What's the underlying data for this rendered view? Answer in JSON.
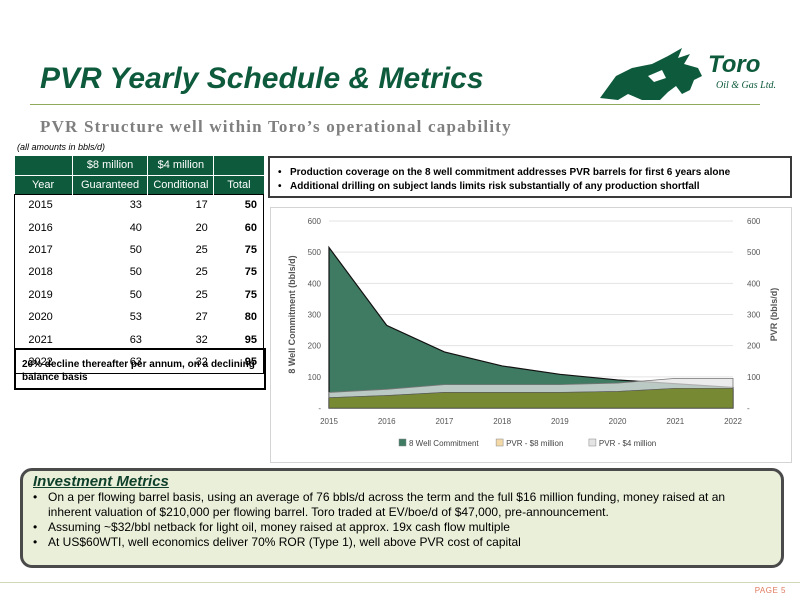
{
  "title": "PVR Yearly Schedule & Metrics",
  "subtitle": "PVR Structure well within Toro’s operational capability",
  "logo": {
    "text": "Toro",
    "subtext": "Oil & Gas Ltd.",
    "icon": "bull-icon",
    "color": "#0d5a3c"
  },
  "units_note": "(all amounts in bbls/d)",
  "table": {
    "header_top": [
      "",
      "$8 million",
      "$4 million",
      ""
    ],
    "header_bottom": [
      "Year",
      "Guaranteed",
      "Conditional",
      "Total"
    ],
    "rows": [
      [
        "2015",
        "33",
        "17",
        "50"
      ],
      [
        "2016",
        "40",
        "20",
        "60"
      ],
      [
        "2017",
        "50",
        "25",
        "75"
      ],
      [
        "2018",
        "50",
        "25",
        "75"
      ],
      [
        "2019",
        "50",
        "25",
        "75"
      ],
      [
        "2020",
        "53",
        "27",
        "80"
      ],
      [
        "2021",
        "63",
        "32",
        "95"
      ],
      [
        "2022",
        "63",
        "32",
        "95"
      ]
    ]
  },
  "decline_note": "20% decline thereafter per annum, on a declining balance basis",
  "coverage_bullets": [
    "Production coverage on the 8 well commitment addresses PVR barrels for first 6 years alone",
    "Additional drilling on subject lands limits risk substantially of any production shortfall"
  ],
  "chart_data": {
    "type": "area",
    "categories": [
      "2015",
      "2016",
      "2017",
      "2018",
      "2019",
      "2020",
      "2021",
      "2022"
    ],
    "ylabel": "8 Well Commitment (bbls/d)",
    "y2label": "PVR (bbls/d)",
    "ylim": [
      0,
      600
    ],
    "y2lim": [
      0,
      600
    ],
    "yticks": [
      "-",
      "100",
      "200",
      "300",
      "400",
      "500",
      "600"
    ],
    "y2ticks": [
      "-",
      "100",
      "200",
      "300",
      "400",
      "500",
      "600"
    ],
    "legend_position": "bottom",
    "grid": true,
    "series": [
      {
        "name": "8 Well Commitment",
        "values": [
          515,
          265,
          180,
          135,
          108,
          90,
          78,
          66
        ],
        "color": "#3f7a63",
        "axis": "left"
      },
      {
        "name": "PVR - $8 million",
        "values": [
          33,
          40,
          50,
          50,
          50,
          53,
          63,
          63
        ],
        "color": "#7d8c2e",
        "axis": "right",
        "legend_color": "#f3d9a8"
      },
      {
        "name": "PVR - $4 million",
        "values": [
          17,
          20,
          25,
          25,
          25,
          27,
          32,
          32
        ],
        "color": "#e4e4e4",
        "axis": "right"
      }
    ]
  },
  "metrics": {
    "title": "Investment Metrics",
    "bullets": [
      "On a per flowing barrel basis, using an average of 76 bbls/d across the term and the full $16 million funding, money raised at an inherent valuation of $210,000 per flowing barrel.  Toro traded at EV/boe/d of $47,000, pre-announcement.",
      "Assuming ~$32/bbl netback for light oil, money raised at approx. 19x cash flow multiple",
      "At US$60WTI, well economics deliver 70% ROR (Type 1), well above PVR cost of capital"
    ]
  },
  "page_number": "PAGE 5"
}
